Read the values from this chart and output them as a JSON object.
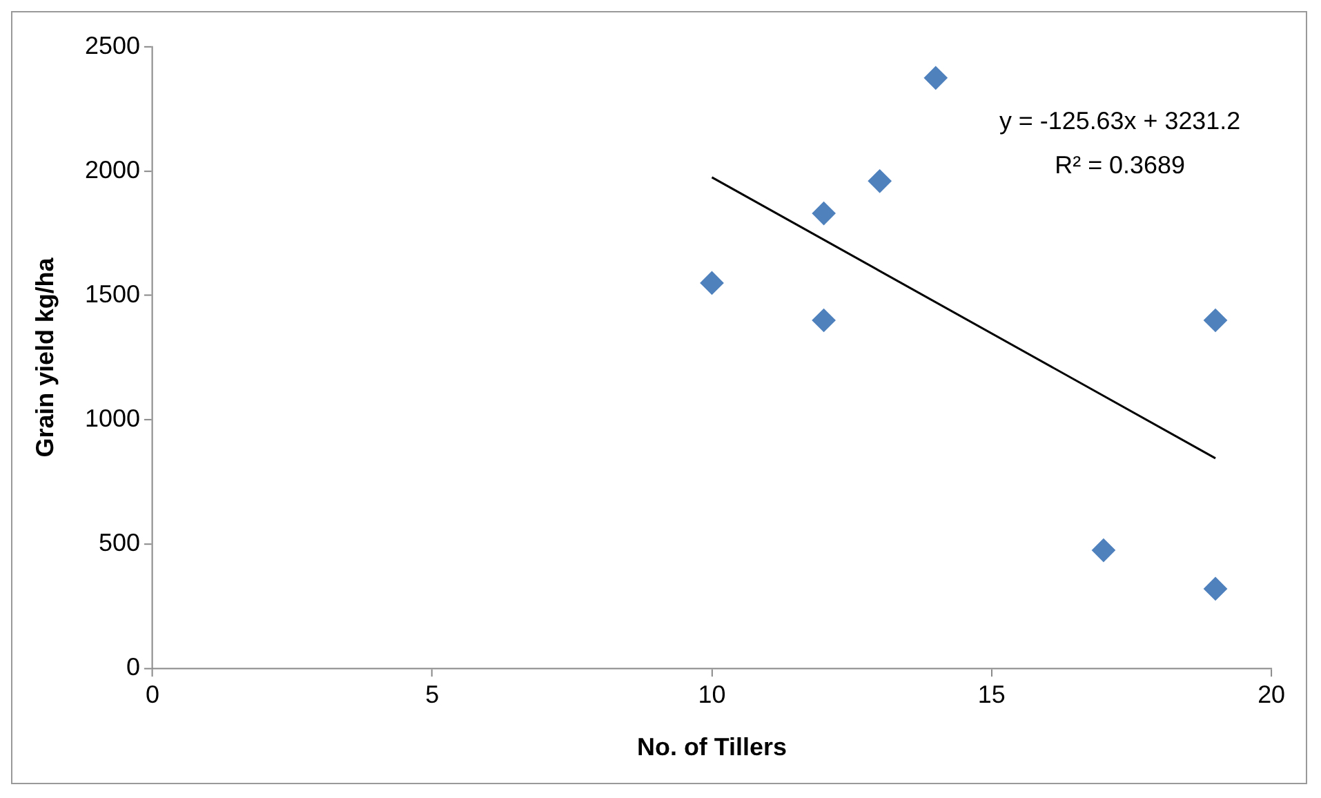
{
  "chart_data": {
    "type": "scatter",
    "xlabel": "No. of Tillers",
    "ylabel": "Grain yield kg/ha",
    "xlim": [
      0,
      20
    ],
    "xticks": [
      0,
      5,
      10,
      15,
      20
    ],
    "ylim": [
      0,
      2500
    ],
    "yticks": [
      0,
      500,
      1000,
      1500,
      2000,
      2500
    ],
    "grid": false,
    "legend": false,
    "marker": "diamond",
    "series": [
      {
        "type": "scatter",
        "color": "#4f81bd",
        "x": [
          10,
          12,
          12,
          13,
          14,
          17,
          19,
          19
        ],
        "values": [
          1550,
          1400,
          1830,
          1960,
          2375,
          475,
          1400,
          320
        ]
      },
      {
        "type": "line",
        "color": "#000000",
        "marker": "none",
        "x": [
          10,
          19
        ],
        "values": [
          1975,
          845
        ]
      }
    ],
    "annotations": [
      "y = -125.63x + 3231.2",
      "R² = 0.3689"
    ]
  }
}
